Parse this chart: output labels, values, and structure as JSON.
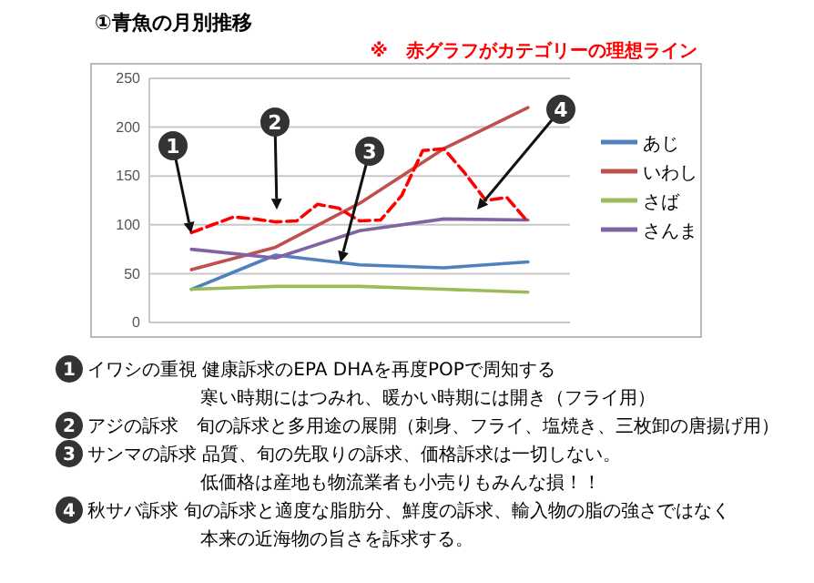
{
  "chart_data": {
    "type": "line",
    "title": "①青魚の月別推移",
    "subtitle": "※　赤グラフがカテゴリーの理想ライン",
    "categories": [
      null,
      null,
      null,
      null,
      null,
      null,
      null,
      null,
      null,
      null,
      null,
      null,
      null,
      null,
      null,
      null,
      null
    ],
    "ylim": [
      0,
      250
    ],
    "yticks": [
      0,
      50,
      100,
      150,
      200,
      250
    ],
    "grid": "y",
    "legend": "right",
    "marker": "none",
    "series": [
      {
        "name": "あじ",
        "color": "#4f81bd",
        "values": [
          34,
          null,
          null,
          null,
          69,
          null,
          null,
          null,
          59,
          null,
          null,
          null,
          56,
          null,
          null,
          null,
          62
        ]
      },
      {
        "name": "いわし",
        "color": "#c0504d",
        "values": [
          54,
          null,
          null,
          null,
          77,
          null,
          null,
          null,
          122,
          null,
          null,
          null,
          178,
          null,
          null,
          null,
          220
        ]
      },
      {
        "name": "さば",
        "color": "#9bbb59",
        "values": [
          34,
          null,
          null,
          null,
          37,
          null,
          null,
          null,
          37,
          null,
          null,
          null,
          34,
          null,
          null,
          null,
          31
        ]
      },
      {
        "name": "さんま",
        "color": "#8064a2",
        "values": [
          75,
          null,
          null,
          null,
          66,
          null,
          null,
          null,
          94,
          null,
          null,
          null,
          106,
          null,
          null,
          null,
          105
        ]
      },
      {
        "color": "#ff0000",
        "line_style": "dashed",
        "values": [
          92,
          100,
          108,
          106,
          103,
          104,
          121,
          117,
          104,
          105,
          130,
          176,
          178,
          153,
          125,
          128,
          103
        ]
      }
    ],
    "annotations": [
      "1",
      "2",
      "3",
      "4",
      "イワシの重視 健康訴求のEPA DHAを再度POPで周知する",
      "寒い時期にはつみれ、暖かい時期には開き（フライ用）",
      "アジの訴求　旬の訴求と多用途の展開（刺身、フライ、塩焼き、三枚卸の唐揚げ用）",
      "サンマの訴求 品質、旬の先取りの訴求、価格訴求は一切しない。",
      "低価格は産地も物流業者も小売りもみんな損！！",
      "秋サバ訴求 旬の訴求と適度な脂肪分、鮮度の訴求、輸入物の脂の強さではなく",
      "本来の近海物の旨さを訴求する。"
    ]
  }
}
